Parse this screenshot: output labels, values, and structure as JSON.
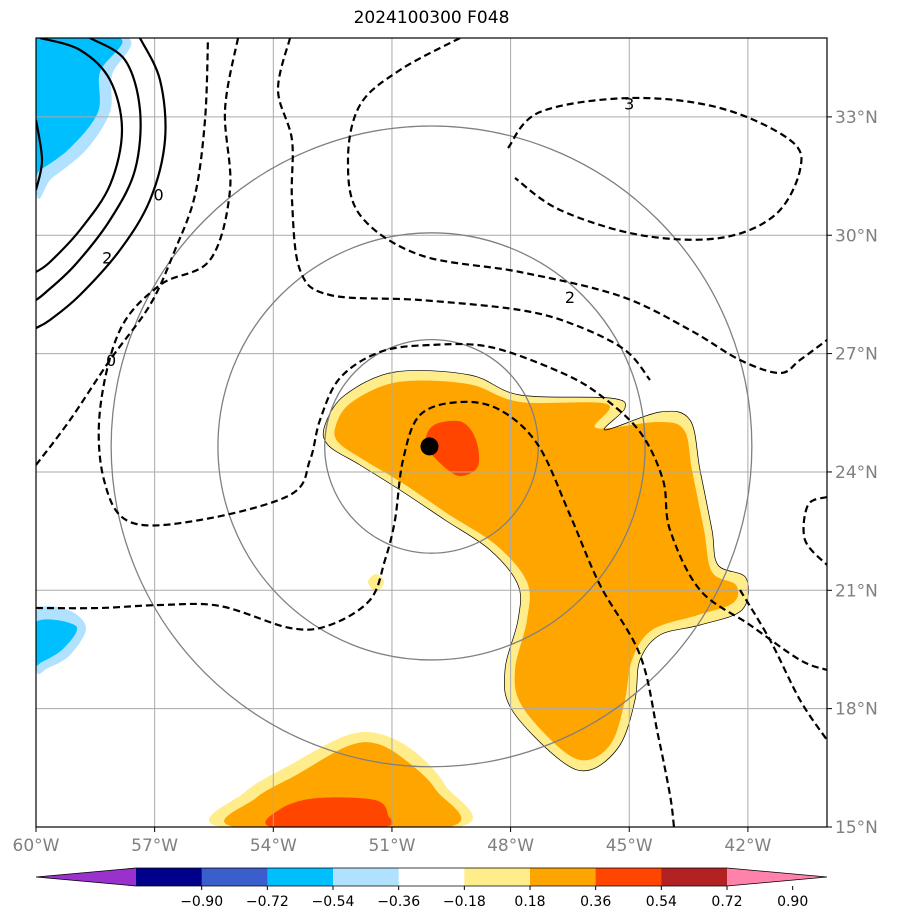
{
  "title": "2024100300 F048",
  "colors": {
    "grid": "#aaaaaa",
    "range_ring": "#808080",
    "contour": "#000000",
    "storm_center": "#000000"
  },
  "chart_data": {
    "type": "map",
    "title": "2024100300 F048",
    "projection": "lat-lon",
    "xlim": [
      -60,
      -40
    ],
    "ylim": [
      15,
      35
    ],
    "lon_ticks": [
      -60,
      -57,
      -54,
      -51,
      -48,
      -45,
      -42
    ],
    "lon_tick_labels": [
      "60°W",
      "57°W",
      "54°W",
      "51°W",
      "48°W",
      "45°W",
      "42°W"
    ],
    "lat_ticks": [
      15,
      18,
      21,
      24,
      27,
      30,
      33
    ],
    "lat_tick_labels": [
      "15°N",
      "18°N",
      "21°N",
      "24°N",
      "27°N",
      "30°N",
      "33°N"
    ],
    "grid": true,
    "storm_center": {
      "lon": -50.0,
      "lat": 24.8
    },
    "range_rings_deg": [
      3,
      6,
      9
    ],
    "contour_labels": [
      {
        "text": "3",
        "lon": -45.0,
        "lat": 33.3
      },
      {
        "text": "2",
        "lon": -46.5,
        "lat": 28.4
      },
      {
        "text": "0",
        "lon": -56.9,
        "lat": 31.0
      },
      {
        "text": "2",
        "lon": -58.2,
        "lat": 29.4
      },
      {
        "text": "0",
        "lon": -58.1,
        "lat": 26.8
      }
    ],
    "colorbar": {
      "ticks": [
        "−0.90",
        "−0.72",
        "−0.54",
        "−0.36",
        "−0.18",
        "0.18",
        "0.36",
        "0.54",
        "0.72",
        "0.90"
      ],
      "levels": [
        -0.9,
        -0.72,
        -0.54,
        -0.36,
        -0.18,
        0.18,
        0.36,
        0.54,
        0.72,
        0.9
      ],
      "colors": [
        "#9932cc",
        "#00008b",
        "#3a5fcd",
        "#00bfff",
        "#b0e2ff",
        "#ffffff",
        "#ffec8b",
        "#ffa500",
        "#ff4500",
        "#b22222",
        "#ff82ab"
      ],
      "extend": "both"
    }
  }
}
